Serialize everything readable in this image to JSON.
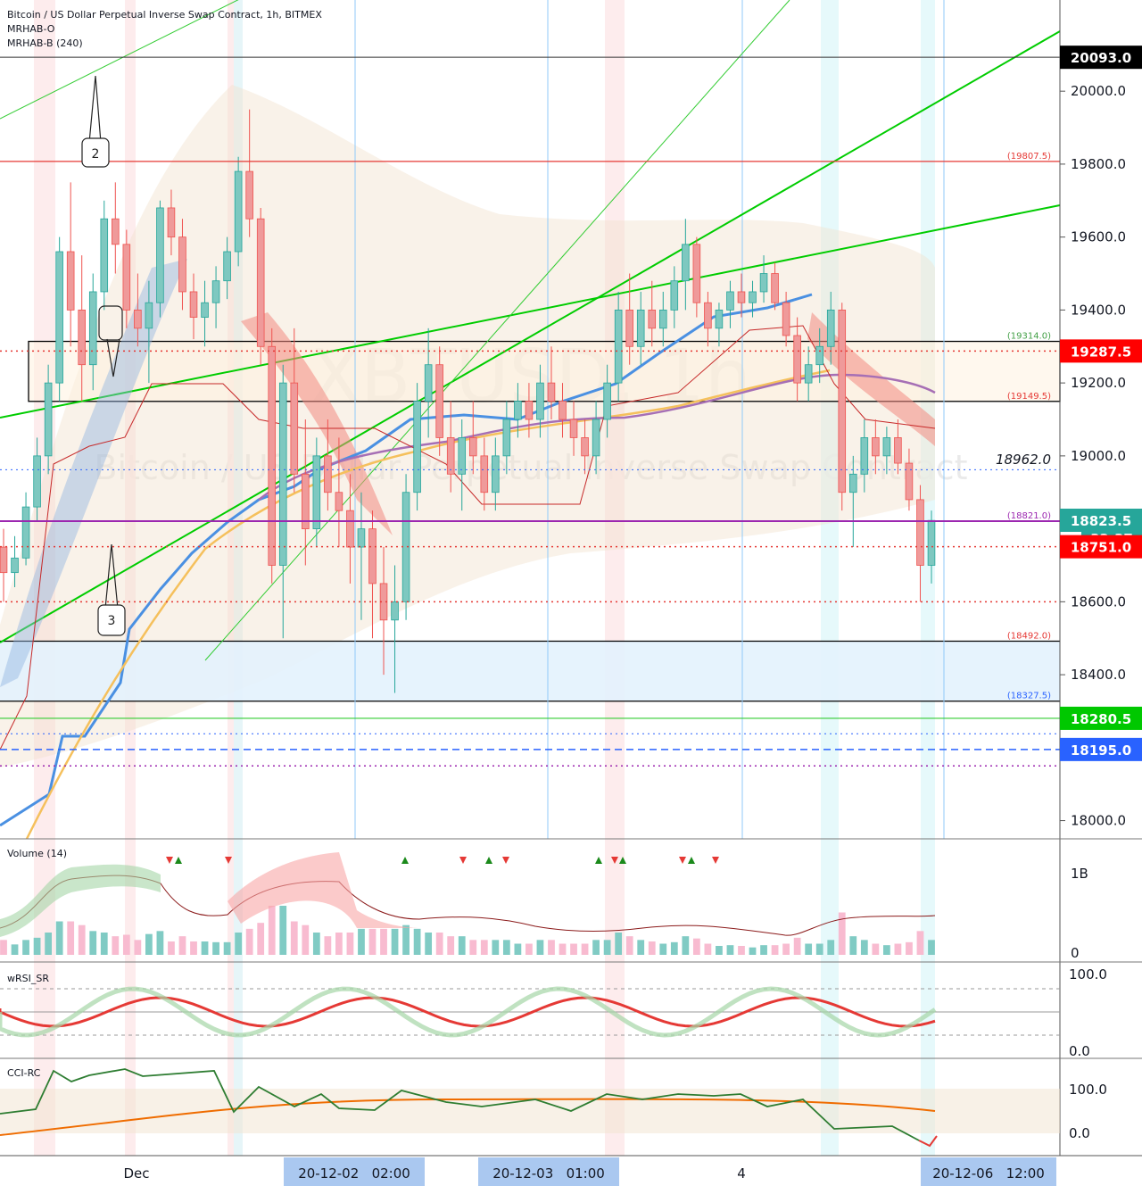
{
  "chart_data": {
    "type": "candlestick",
    "header": {
      "title": "Bitcoin / US Dollar Perpetual Inverse Swap Contract, 1h, BITMEX",
      "indicators": [
        "MRHAB-O",
        "MRHAB-B (240)"
      ]
    },
    "watermark": {
      "symbol": "XBTUSD, 1h",
      "description": "Bitcoin / US Dollar Perpetual Inverse Swap Contract"
    },
    "price_axis": {
      "min": 17950,
      "max": 20250,
      "ticks": [
        "20000.0",
        "19800.0",
        "19600.0",
        "19400.0",
        "19200.0",
        "19000.0",
        "18600.0",
        "18400.0",
        "18000.0"
      ]
    },
    "price_badges": [
      {
        "label": "20093.0",
        "value": 20093.0,
        "color": "#000000"
      },
      {
        "label": "19287.5",
        "value": 19287.5,
        "color": "#ff0000"
      },
      {
        "label": "18823.5",
        "value": 18823.5,
        "color": "#26a69a"
      },
      {
        "label": "32:37",
        "value": 18775.0,
        "color": "#26a69a"
      },
      {
        "label": "18751.0",
        "value": 18751.0,
        "color": "#ff0000"
      },
      {
        "label": "18280.5",
        "value": 18280.5,
        "color": "#00c800"
      },
      {
        "label": "18195.0",
        "value": 18195.0,
        "color": "#2962ff"
      }
    ],
    "level_labels": [
      {
        "label": "(19807.5)",
        "value": 19807.5,
        "color": "#e53935"
      },
      {
        "label": "(19314.0)",
        "value": 19314.0,
        "color": "#43a047"
      },
      {
        "label": "(19149.5)",
        "value": 19149.5,
        "color": "#e53935"
      },
      {
        "label": "(18821.0)",
        "value": 18821.0,
        "color": "#9c27b0"
      },
      {
        "label": "(18492.0)",
        "value": 18492.0,
        "color": "#e53935"
      },
      {
        "label": "(18327.5)",
        "value": 18327.5,
        "color": "#2962ff"
      }
    ],
    "plain_price_label": {
      "label": "18962.0",
      "value": 18962.0
    },
    "annotations": [
      {
        "label": "2"
      },
      {
        "label": "3"
      }
    ],
    "candles_ohlc": [
      [
        18750,
        18800,
        18600,
        18680
      ],
      [
        18680,
        18780,
        18640,
        18720
      ],
      [
        18720,
        18900,
        18700,
        18860
      ],
      [
        18860,
        19050,
        18820,
        19000
      ],
      [
        19000,
        19250,
        18950,
        19200
      ],
      [
        19200,
        19600,
        19150,
        19560
      ],
      [
        19560,
        19750,
        19300,
        19400
      ],
      [
        19400,
        19550,
        19150,
        19250
      ],
      [
        19250,
        19500,
        19180,
        19450
      ],
      [
        19450,
        19700,
        19400,
        19650
      ],
      [
        19650,
        19750,
        19500,
        19580
      ],
      [
        19580,
        19620,
        19350,
        19400
      ],
      [
        19400,
        19500,
        19300,
        19350
      ],
      [
        19350,
        19480,
        19200,
        19420
      ],
      [
        19420,
        19700,
        19380,
        19680
      ],
      [
        19680,
        19730,
        19550,
        19600
      ],
      [
        19600,
        19650,
        19400,
        19450
      ],
      [
        19450,
        19500,
        19320,
        19380
      ],
      [
        19380,
        19480,
        19300,
        19420
      ],
      [
        19420,
        19520,
        19350,
        19480
      ],
      [
        19480,
        19600,
        19430,
        19560
      ],
      [
        19560,
        19820,
        19520,
        19780
      ],
      [
        19780,
        19950,
        19600,
        19650
      ],
      [
        19650,
        19680,
        19250,
        19300
      ],
      [
        19300,
        19350,
        18650,
        18700
      ],
      [
        18700,
        19250,
        18500,
        19200
      ],
      [
        19200,
        19350,
        18900,
        18950
      ],
      [
        18950,
        19100,
        18700,
        18800
      ],
      [
        18800,
        19050,
        18750,
        19000
      ],
      [
        19000,
        19100,
        18850,
        18900
      ],
      [
        18900,
        19050,
        18750,
        18850
      ],
      [
        18850,
        18950,
        18650,
        18750
      ],
      [
        18750,
        18900,
        18550,
        18800
      ],
      [
        18800,
        18850,
        18500,
        18650
      ],
      [
        18650,
        18750,
        18400,
        18550
      ],
      [
        18550,
        18700,
        18350,
        18600
      ],
      [
        18600,
        18950,
        18550,
        18900
      ],
      [
        18900,
        19200,
        18850,
        19150
      ],
      [
        19150,
        19350,
        19050,
        19250
      ],
      [
        19250,
        19300,
        19000,
        19050
      ],
      [
        19050,
        19150,
        18900,
        18950
      ],
      [
        18950,
        19100,
        18850,
        19050
      ],
      [
        19050,
        19150,
        18950,
        19000
      ],
      [
        19000,
        19050,
        18850,
        18900
      ],
      [
        18900,
        19050,
        18850,
        19000
      ],
      [
        19000,
        19150,
        18950,
        19100
      ],
      [
        19100,
        19200,
        19050,
        19150
      ],
      [
        19150,
        19200,
        19050,
        19100
      ],
      [
        19100,
        19250,
        19050,
        19200
      ],
      [
        19200,
        19300,
        19100,
        19150
      ],
      [
        19150,
        19200,
        19050,
        19100
      ],
      [
        19100,
        19150,
        19000,
        19050
      ],
      [
        19050,
        19100,
        18950,
        19000
      ],
      [
        19000,
        19150,
        18950,
        19100
      ],
      [
        19100,
        19250,
        19050,
        19200
      ],
      [
        19200,
        19450,
        19150,
        19400
      ],
      [
        19400,
        19500,
        19250,
        19300
      ],
      [
        19300,
        19450,
        19250,
        19400
      ],
      [
        19400,
        19480,
        19300,
        19350
      ],
      [
        19350,
        19450,
        19300,
        19400
      ],
      [
        19400,
        19520,
        19350,
        19480
      ],
      [
        19480,
        19650,
        19400,
        19580
      ],
      [
        19580,
        19600,
        19380,
        19420
      ],
      [
        19420,
        19450,
        19300,
        19350
      ],
      [
        19350,
        19420,
        19300,
        19400
      ],
      [
        19400,
        19480,
        19350,
        19450
      ],
      [
        19450,
        19500,
        19380,
        19420
      ],
      [
        19420,
        19480,
        19380,
        19450
      ],
      [
        19450,
        19550,
        19420,
        19500
      ],
      [
        19500,
        19530,
        19400,
        19420
      ],
      [
        19420,
        19450,
        19300,
        19330
      ],
      [
        19330,
        19380,
        19150,
        19200
      ],
      [
        19200,
        19300,
        19150,
        19250
      ],
      [
        19250,
        19350,
        19200,
        19300
      ],
      [
        19300,
        19450,
        19250,
        19400
      ],
      [
        19400,
        19420,
        18850,
        18900
      ],
      [
        18900,
        19000,
        18750,
        18950
      ],
      [
        18950,
        19100,
        18900,
        19050
      ],
      [
        19050,
        19100,
        18950,
        19000
      ],
      [
        19000,
        19080,
        18950,
        19050
      ],
      [
        19050,
        19100,
        18950,
        18980
      ],
      [
        18980,
        19020,
        18850,
        18880
      ],
      [
        18880,
        18920,
        18600,
        18700
      ],
      [
        18700,
        18850,
        18650,
        18823
      ]
    ],
    "panes": [
      {
        "name": "Volume (14)",
        "axis_ticks": [
          "1B",
          "0"
        ]
      },
      {
        "name": "wRSI_SR",
        "axis_ticks": [
          "100.0",
          "0.0"
        ]
      },
      {
        "name": "CCI-RC",
        "axis_ticks": [
          "100.0",
          "0.0"
        ]
      }
    ],
    "time_axis": {
      "labels": [
        "Dec",
        "4"
      ],
      "highlighted": [
        "20-12-02   02:00",
        "20-12-03   01:00",
        "20-12-06   12:00"
      ]
    }
  }
}
